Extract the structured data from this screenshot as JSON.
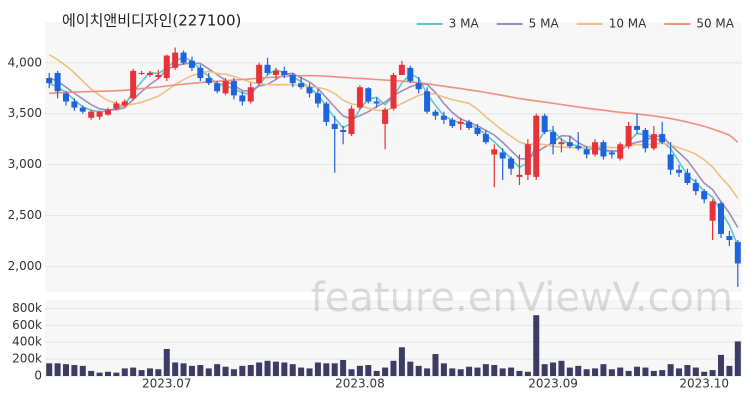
{
  "chart_data": [
    {
      "type": "candlestick",
      "title": "에이치앤비디자인(227100)",
      "open": [
        3850,
        3900,
        3700,
        3620,
        3560,
        3460,
        3470,
        3490,
        3550,
        3580,
        3650,
        3900,
        3880,
        3860,
        3850,
        3950,
        4100,
        4020,
        3950,
        3850,
        3800,
        3700,
        3820,
        3680,
        3620,
        3800,
        3980,
        3880,
        3920,
        3880,
        3800,
        3760,
        3700,
        3600,
        3400,
        3340,
        3300,
        3560,
        3750,
        3620,
        3400,
        3550,
        3880,
        3950,
        3800,
        3720,
        3520,
        3480,
        3440,
        3400,
        3420,
        3360,
        3300,
        3100,
        3120,
        3060,
        2880,
        2900,
        2880,
        3480,
        3320,
        3200,
        3220,
        3180,
        3150,
        3100,
        3220,
        3120,
        3060,
        3180,
        3380,
        3340,
        3160,
        3300,
        3100,
        2950,
        2920,
        2820,
        2740,
        2450,
        2620,
        2300,
        2240
      ],
      "high": [
        3900,
        3920,
        3720,
        3650,
        3580,
        3540,
        3530,
        3560,
        3620,
        3640,
        3940,
        3920,
        3920,
        3930,
        4080,
        4150,
        4120,
        4060,
        3980,
        3900,
        3820,
        3850,
        3850,
        3720,
        3800,
        4000,
        4050,
        3950,
        3960,
        3900,
        3860,
        3800,
        3740,
        3620,
        3480,
        3380,
        3580,
        3780,
        3760,
        3660,
        3560,
        3900,
        4020,
        3970,
        3860,
        3760,
        3540,
        3520,
        3460,
        3460,
        3440,
        3400,
        3340,
        3200,
        3160,
        3080,
        3100,
        3250,
        3500,
        3500,
        3380,
        3260,
        3280,
        3320,
        3180,
        3250,
        3240,
        3140,
        3220,
        3420,
        3500,
        3360,
        3380,
        3420,
        3220,
        3000,
        2960,
        2860,
        2760,
        2660,
        2640,
        2350,
        2260
      ],
      "low": [
        3750,
        3650,
        3580,
        3530,
        3500,
        3440,
        3440,
        3480,
        3530,
        3560,
        3630,
        3880,
        3860,
        3840,
        3820,
        3930,
        3980,
        3920,
        3820,
        3780,
        3700,
        3680,
        3640,
        3580,
        3600,
        3780,
        3880,
        3840,
        3850,
        3760,
        3740,
        3660,
        3560,
        3380,
        2920,
        3200,
        3280,
        3540,
        3600,
        3560,
        3150,
        3530,
        3880,
        3800,
        3700,
        3500,
        3440,
        3400,
        3360,
        3340,
        3340,
        3280,
        3200,
        2780,
        2850,
        2900,
        2800,
        2850,
        2850,
        3300,
        3100,
        3120,
        3160,
        3140,
        3060,
        3080,
        3050,
        3060,
        3040,
        3160,
        3300,
        3120,
        3140,
        3200,
        2900,
        2880,
        2800,
        2700,
        2620,
        2260,
        2280,
        2200,
        1800
      ],
      "close": [
        3800,
        3720,
        3620,
        3560,
        3520,
        3520,
        3520,
        3540,
        3600,
        3620,
        3920,
        3900,
        3900,
        3880,
        4070,
        4100,
        4000,
        3950,
        3850,
        3800,
        3720,
        3820,
        3680,
        3620,
        3760,
        3980,
        3900,
        3920,
        3880,
        3800,
        3760,
        3700,
        3600,
        3420,
        3350,
        3320,
        3550,
        3760,
        3620,
        3600,
        3540,
        3880,
        3980,
        3820,
        3740,
        3520,
        3480,
        3440,
        3380,
        3420,
        3360,
        3300,
        3220,
        3150,
        3060,
        2960,
        2900,
        3200,
        3480,
        3320,
        3200,
        3220,
        3180,
        3160,
        3100,
        3220,
        3080,
        3100,
        3200,
        3380,
        3340,
        3160,
        3300,
        3220,
        2950,
        2920,
        2820,
        2740,
        2660,
        2640,
        2320,
        2260,
        2030
      ],
      "up_color": "#e8323a",
      "down_color": "#1e64dc",
      "series": [
        {
          "name": "3 MA",
          "color": "#5cc8c8",
          "values": [
            3800,
            3760,
            3713,
            3633,
            3567,
            3533,
            3520,
            3527,
            3553,
            3587,
            3713,
            3813,
            3907,
            3893,
            3950,
            4017,
            4057,
            4017,
            3933,
            3867,
            3790,
            3780,
            3740,
            3707,
            3687,
            3787,
            3880,
            3933,
            3900,
            3867,
            3813,
            3753,
            3687,
            3573,
            3457,
            3363,
            3407,
            3543,
            3643,
            3660,
            3587,
            3673,
            3800,
            3893,
            3847,
            3693,
            3580,
            3480,
            3433,
            3413,
            3387,
            3360,
            3293,
            3223,
            3143,
            3057,
            2973,
            3020,
            3193,
            3333,
            3333,
            3247,
            3200,
            3187,
            3147,
            3160,
            3133,
            3133,
            3127,
            3227,
            3307,
            3293,
            3267,
            3227,
            3157,
            3030,
            2897,
            2827,
            2740,
            2680,
            2540,
            2407,
            2203
          ]
        },
        {
          "name": "5 MA",
          "color": "#a08cc0",
          "values": [
            3850,
            3820,
            3760,
            3700,
            3644,
            3588,
            3548,
            3536,
            3540,
            3560,
            3640,
            3716,
            3788,
            3844,
            3934,
            3970,
            3990,
            3996,
            3994,
            3940,
            3884,
            3828,
            3774,
            3728,
            3720,
            3772,
            3788,
            3836,
            3888,
            3896,
            3852,
            3812,
            3748,
            3656,
            3566,
            3478,
            3448,
            3480,
            3520,
            3570,
            3614,
            3680,
            3724,
            3764,
            3792,
            3788,
            3708,
            3600,
            3512,
            3448,
            3416,
            3380,
            3336,
            3290,
            3218,
            3138,
            3058,
            3056,
            3120,
            3172,
            3220,
            3284,
            3280,
            3216,
            3172,
            3176,
            3148,
            3132,
            3140,
            3196,
            3220,
            3236,
            3276,
            3280,
            3194,
            3118,
            3042,
            2930,
            2818,
            2756,
            2636,
            2524,
            2382
          ]
        },
        {
          "name": "10 MA",
          "color": "#f0c080",
          "values": [
            4080,
            4030,
            3970,
            3900,
            3820,
            3740,
            3680,
            3630,
            3600,
            3580,
            3594,
            3612,
            3640,
            3672,
            3728,
            3786,
            3834,
            3874,
            3898,
            3916,
            3896,
            3888,
            3866,
            3840,
            3808,
            3796,
            3786,
            3784,
            3786,
            3784,
            3778,
            3766,
            3758,
            3738,
            3698,
            3632,
            3596,
            3580,
            3554,
            3534,
            3530,
            3562,
            3600,
            3640,
            3680,
            3700,
            3694,
            3662,
            3638,
            3620,
            3602,
            3544,
            3468,
            3402,
            3334,
            3278,
            3220,
            3196,
            3206,
            3196,
            3180,
            3172,
            3168,
            3164,
            3164,
            3190,
            3178,
            3166,
            3168,
            3186,
            3198,
            3192,
            3204,
            3210,
            3194,
            3164,
            3138,
            3102,
            3048,
            2976,
            2876,
            2786,
            2670
          ]
        },
        {
          "name": "50 MA",
          "color": "#f09080",
          "values": [
            3700,
            3705,
            3710,
            3712,
            3715,
            3718,
            3720,
            3722,
            3726,
            3730,
            3738,
            3746,
            3754,
            3762,
            3772,
            3782,
            3790,
            3798,
            3806,
            3812,
            3818,
            3824,
            3830,
            3836,
            3842,
            3848,
            3854,
            3860,
            3866,
            3870,
            3872,
            3874,
            3872,
            3868,
            3862,
            3856,
            3850,
            3846,
            3842,
            3836,
            3830,
            3826,
            3820,
            3812,
            3804,
            3794,
            3782,
            3770,
            3758,
            3746,
            3734,
            3722,
            3708,
            3694,
            3680,
            3664,
            3648,
            3636,
            3626,
            3614,
            3602,
            3590,
            3578,
            3566,
            3554,
            3544,
            3534,
            3524,
            3514,
            3506,
            3498,
            3488,
            3478,
            3466,
            3452,
            3436,
            3418,
            3398,
            3376,
            3350,
            3320,
            3290,
            3220
          ]
        }
      ],
      "ylim": [
        1750,
        4400
      ],
      "yticks": [
        {
          "value": 4000,
          "label": "4,000"
        },
        {
          "value": 3500,
          "label": "3,500"
        },
        {
          "value": 3000,
          "label": "3,000"
        },
        {
          "value": 2500,
          "label": "2,500"
        },
        {
          "value": 2000,
          "label": "2,000"
        }
      ],
      "grid": true,
      "legend": "top-right"
    },
    {
      "type": "bar",
      "categories": [
        null,
        null,
        null,
        null,
        null,
        null,
        null,
        null,
        null,
        null,
        null,
        null,
        null,
        null,
        "2023.07",
        null,
        null,
        null,
        null,
        null,
        null,
        null,
        null,
        null,
        null,
        null,
        null,
        null,
        null,
        null,
        null,
        null,
        null,
        null,
        null,
        null,
        null,
        "2023.08",
        null,
        null,
        null,
        null,
        null,
        null,
        null,
        null,
        null,
        null,
        null,
        null,
        null,
        null,
        null,
        null,
        null,
        null,
        null,
        null,
        null,
        null,
        "2023.09",
        null,
        null,
        null,
        null,
        null,
        null,
        null,
        null,
        null,
        null,
        null,
        null,
        null,
        null,
        null,
        null,
        null,
        "2023.10",
        null,
        null,
        null,
        null
      ],
      "values": [
        150000,
        150000,
        140000,
        130000,
        120000,
        60000,
        40000,
        50000,
        40000,
        90000,
        100000,
        70000,
        90000,
        80000,
        320000,
        160000,
        150000,
        120000,
        130000,
        90000,
        140000,
        110000,
        80000,
        120000,
        130000,
        160000,
        180000,
        170000,
        160000,
        140000,
        100000,
        90000,
        160000,
        150000,
        150000,
        190000,
        80000,
        120000,
        130000,
        60000,
        100000,
        180000,
        340000,
        170000,
        120000,
        90000,
        260000,
        150000,
        90000,
        80000,
        110000,
        100000,
        140000,
        130000,
        90000,
        100000,
        60000,
        50000,
        720000,
        140000,
        160000,
        180000,
        100000,
        120000,
        80000,
        90000,
        140000,
        80000,
        100000,
        60000,
        110000,
        100000,
        60000,
        70000,
        140000,
        90000,
        130000,
        100000,
        50000,
        70000,
        250000,
        120000,
        410000
      ],
      "color": "#3c3c64",
      "ylim": [
        0,
        900000
      ],
      "yticks": [
        0,
        {
          "value": 200000,
          "label": "200k"
        },
        {
          "value": 400000,
          "label": "400k"
        },
        {
          "value": 600000,
          "label": "600k"
        },
        {
          "value": 800000,
          "label": "800k"
        }
      ],
      "grid": true
    }
  ],
  "watermark": "feature.enViewV.com"
}
